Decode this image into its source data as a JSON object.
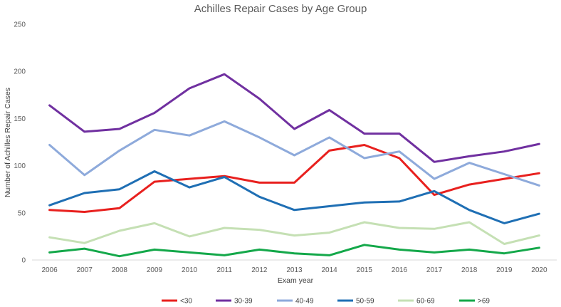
{
  "chart_data": {
    "type": "line",
    "title": "Achilles Repair Cases by Age Group",
    "xlabel": "Exam year",
    "ylabel": "Number of Achilles Repair Cases",
    "ylim": [
      0,
      250
    ],
    "yticks": [
      0,
      50,
      100,
      150,
      200,
      250
    ],
    "grid": false,
    "legend_position": "bottom",
    "categories": [
      "2006",
      "2007",
      "2008",
      "2009",
      "2010",
      "2011",
      "2012",
      "2013",
      "2014",
      "2015",
      "2016",
      "2017",
      "2018",
      "2019",
      "2020"
    ],
    "series": [
      {
        "name": "<30",
        "color": "#e8201e",
        "values": [
          53,
          51,
          55,
          83,
          86,
          89,
          82,
          82,
          116,
          122,
          108,
          69,
          80,
          86,
          92
        ]
      },
      {
        "name": "30-39",
        "color": "#7030a0",
        "values": [
          164,
          136,
          139,
          156,
          182,
          197,
          171,
          139,
          159,
          134,
          134,
          104,
          110,
          115,
          123
        ]
      },
      {
        "name": "40-49",
        "color": "#8eaadb",
        "values": [
          122,
          90,
          116,
          138,
          132,
          147,
          130,
          111,
          130,
          108,
          115,
          86,
          103,
          91,
          79
        ]
      },
      {
        "name": "50-59",
        "color": "#1f6fb4",
        "values": [
          58,
          71,
          75,
          94,
          77,
          88,
          67,
          53,
          57,
          61,
          62,
          73,
          53,
          39,
          49
        ]
      },
      {
        "name": "60-69",
        "color": "#c5e0b4",
        "values": [
          24,
          18,
          31,
          39,
          25,
          34,
          32,
          26,
          29,
          40,
          34,
          33,
          40,
          17,
          26
        ]
      },
      {
        "name": ">69",
        "color": "#14a84a",
        "values": [
          8,
          12,
          4,
          11,
          8,
          5,
          11,
          7,
          5,
          16,
          11,
          8,
          11,
          7,
          13
        ]
      }
    ]
  }
}
